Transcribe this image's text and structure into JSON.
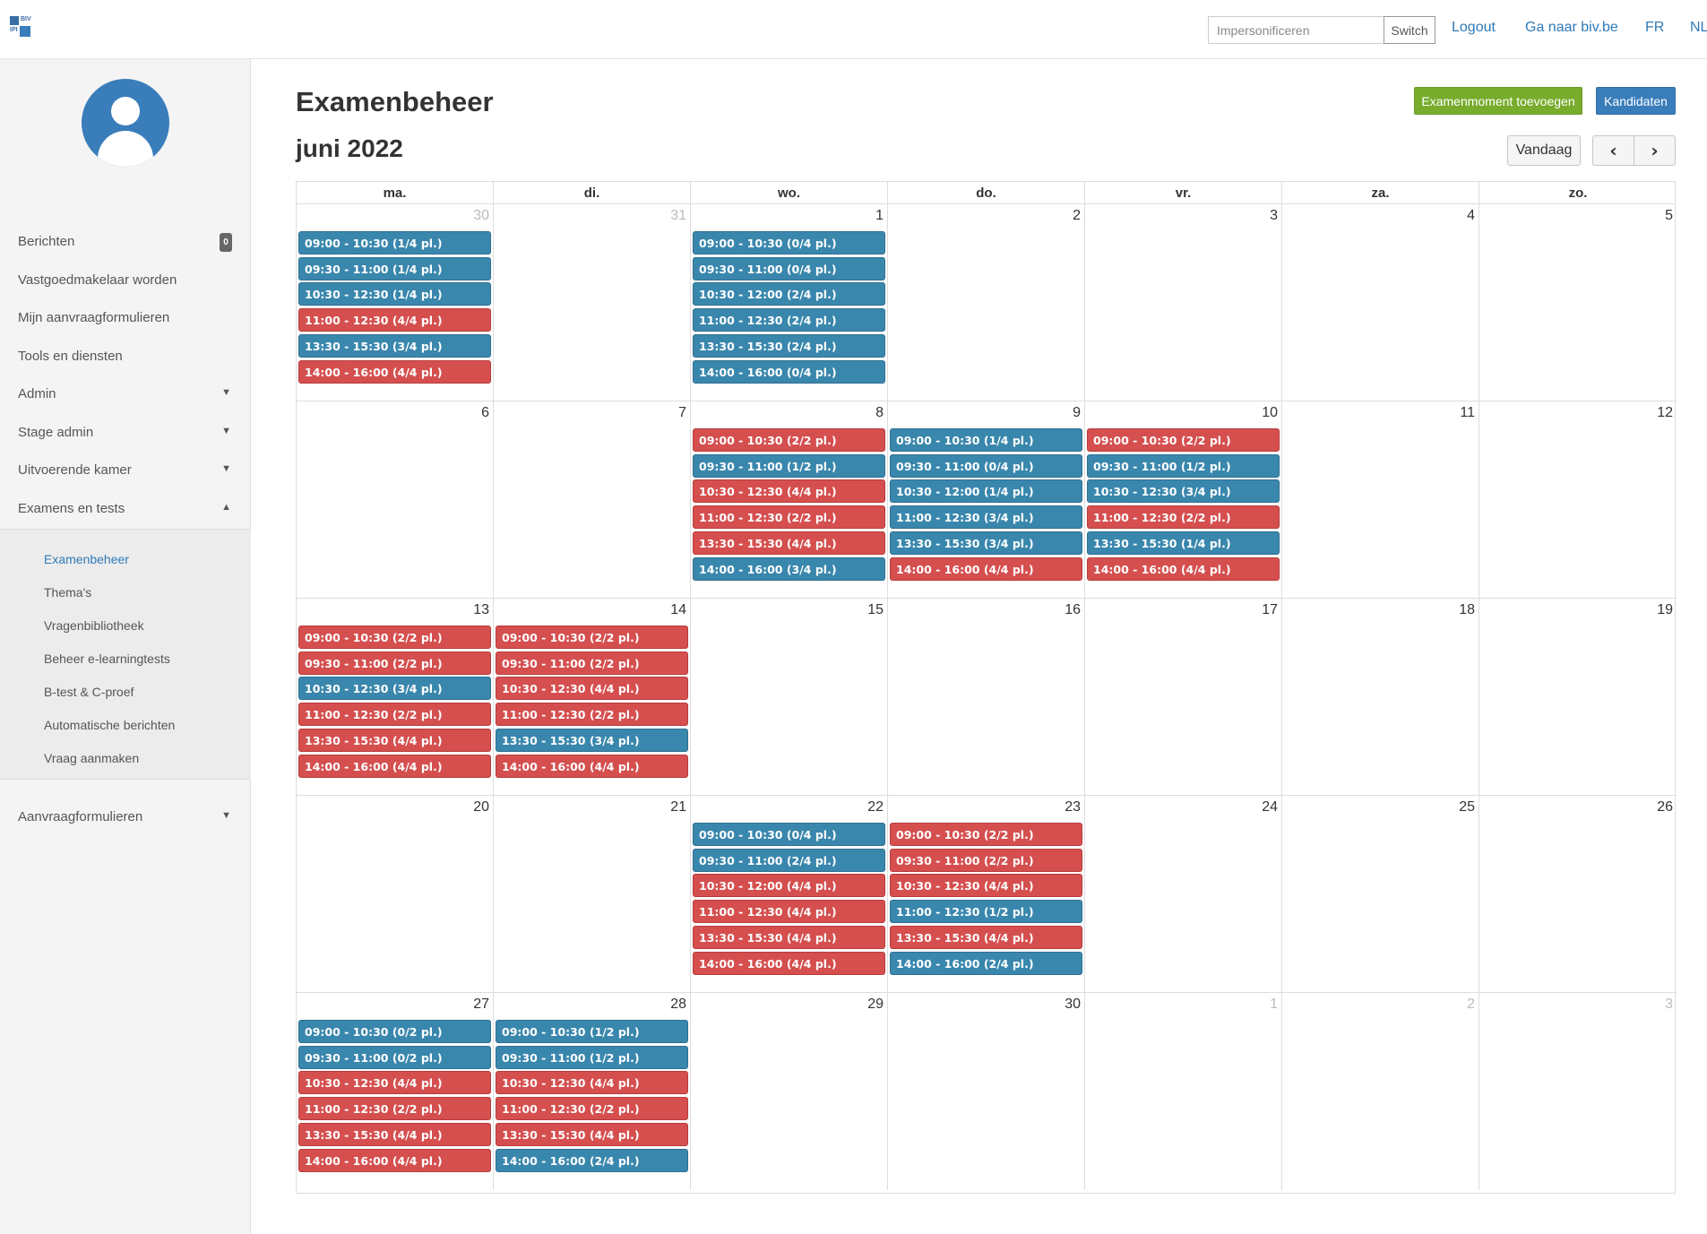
{
  "header": {
    "logo_top": "BIV",
    "logo_bottom": "IPI",
    "impersonate_placeholder": "Impersonificeren",
    "switch_label": "Switch",
    "links": [
      {
        "label": "Logout"
      },
      {
        "label": "Ga naar biv.be"
      },
      {
        "label": "FR"
      },
      {
        "label": "NL"
      }
    ]
  },
  "sidebar": {
    "items": [
      {
        "label": "Berichten",
        "badge": "0"
      },
      {
        "label": "Vastgoedmakelaar worden"
      },
      {
        "label": "Mijn aanvraagformulieren"
      },
      {
        "label": "Tools en diensten"
      },
      {
        "label": "Admin",
        "caret": "▼"
      },
      {
        "label": "Stage admin",
        "caret": "▼"
      },
      {
        "label": "Uitvoerende kamer",
        "caret": "▼"
      },
      {
        "label": "Examens en tests",
        "caret": "▲"
      },
      {
        "label": "Aanvraagformulieren",
        "caret": "▼"
      }
    ],
    "subitems": [
      {
        "label": "Examenbeheer",
        "active": true
      },
      {
        "label": "Thema's"
      },
      {
        "label": "Vragenbibliotheek"
      },
      {
        "label": "Beheer e-learningtests"
      },
      {
        "label": "B-test & C-proef"
      },
      {
        "label": "Automatische berichten"
      },
      {
        "label": "Vraag aanmaken"
      }
    ]
  },
  "main": {
    "title": "Examenbeheer",
    "month": "juni 2022",
    "add_button": "Examenmoment toevoegen",
    "candidates_button": "Kandidaten",
    "today_button": "Vandaag",
    "prev_icon": "‹",
    "next_icon": "›"
  },
  "colors": {
    "available": "#3a87ad",
    "full": "#d54f4f",
    "green": "#77ac2c"
  },
  "calendar": {
    "weekdays": [
      "ma.",
      "di.",
      "wo.",
      "do.",
      "vr.",
      "za.",
      "zo."
    ],
    "weeks": [
      [
        {
          "day": "30",
          "other": true,
          "events": [
            {
              "text": "09:00 - 10:30 (1/4 pl.)",
              "status": "blue"
            },
            {
              "text": "09:30 - 11:00 (1/4 pl.)",
              "status": "blue"
            },
            {
              "text": "10:30 - 12:30 (1/4 pl.)",
              "status": "blue"
            },
            {
              "text": "11:00 - 12:30 (4/4 pl.)",
              "status": "red"
            },
            {
              "text": "13:30 - 15:30 (3/4 pl.)",
              "status": "blue"
            },
            {
              "text": "14:00 - 16:00 (4/4 pl.)",
              "status": "red"
            }
          ]
        },
        {
          "day": "31",
          "other": true,
          "events": []
        },
        {
          "day": "1",
          "events": [
            {
              "text": "09:00 - 10:30 (0/4 pl.)",
              "status": "blue"
            },
            {
              "text": "09:30 - 11:00 (0/4 pl.)",
              "status": "blue"
            },
            {
              "text": "10:30 - 12:00 (2/4 pl.)",
              "status": "blue"
            },
            {
              "text": "11:00 - 12:30 (2/4 pl.)",
              "status": "blue"
            },
            {
              "text": "13:30 - 15:30 (2/4 pl.)",
              "status": "blue"
            },
            {
              "text": "14:00 - 16:00 (0/4 pl.)",
              "status": "blue"
            }
          ]
        },
        {
          "day": "2",
          "events": []
        },
        {
          "day": "3",
          "events": []
        },
        {
          "day": "4",
          "events": []
        },
        {
          "day": "5",
          "events": []
        }
      ],
      [
        {
          "day": "6",
          "events": []
        },
        {
          "day": "7",
          "events": []
        },
        {
          "day": "8",
          "events": [
            {
              "text": "09:00 - 10:30 (2/2 pl.)",
              "status": "red"
            },
            {
              "text": "09:30 - 11:00 (1/2 pl.)",
              "status": "blue"
            },
            {
              "text": "10:30 - 12:30 (4/4 pl.)",
              "status": "red"
            },
            {
              "text": "11:00 - 12:30 (2/2 pl.)",
              "status": "red"
            },
            {
              "text": "13:30 - 15:30 (4/4 pl.)",
              "status": "red"
            },
            {
              "text": "14:00 - 16:00 (3/4 pl.)",
              "status": "blue"
            }
          ]
        },
        {
          "day": "9",
          "events": [
            {
              "text": "09:00 - 10:30 (1/4 pl.)",
              "status": "blue"
            },
            {
              "text": "09:30 - 11:00 (0/4 pl.)",
              "status": "blue"
            },
            {
              "text": "10:30 - 12:00 (1/4 pl.)",
              "status": "blue"
            },
            {
              "text": "11:00 - 12:30 (3/4 pl.)",
              "status": "blue"
            },
            {
              "text": "13:30 - 15:30 (3/4 pl.)",
              "status": "blue"
            },
            {
              "text": "14:00 - 16:00 (4/4 pl.)",
              "status": "red"
            }
          ]
        },
        {
          "day": "10",
          "events": [
            {
              "text": "09:00 - 10:30 (2/2 pl.)",
              "status": "red"
            },
            {
              "text": "09:30 - 11:00 (1/2 pl.)",
              "status": "blue"
            },
            {
              "text": "10:30 - 12:30 (3/4 pl.)",
              "status": "blue"
            },
            {
              "text": "11:00 - 12:30 (2/2 pl.)",
              "status": "red"
            },
            {
              "text": "13:30 - 15:30 (1/4 pl.)",
              "status": "blue"
            },
            {
              "text": "14:00 - 16:00 (4/4 pl.)",
              "status": "red"
            }
          ]
        },
        {
          "day": "11",
          "events": []
        },
        {
          "day": "12",
          "events": []
        }
      ],
      [
        {
          "day": "13",
          "events": [
            {
              "text": "09:00 - 10:30 (2/2 pl.)",
              "status": "red"
            },
            {
              "text": "09:30 - 11:00 (2/2 pl.)",
              "status": "red"
            },
            {
              "text": "10:30 - 12:30 (3/4 pl.)",
              "status": "blue"
            },
            {
              "text": "11:00 - 12:30 (2/2 pl.)",
              "status": "red"
            },
            {
              "text": "13:30 - 15:30 (4/4 pl.)",
              "status": "red"
            },
            {
              "text": "14:00 - 16:00 (4/4 pl.)",
              "status": "red"
            }
          ]
        },
        {
          "day": "14",
          "events": [
            {
              "text": "09:00 - 10:30 (2/2 pl.)",
              "status": "red"
            },
            {
              "text": "09:30 - 11:00 (2/2 pl.)",
              "status": "red"
            },
            {
              "text": "10:30 - 12:30 (4/4 pl.)",
              "status": "red"
            },
            {
              "text": "11:00 - 12:30 (2/2 pl.)",
              "status": "red"
            },
            {
              "text": "13:30 - 15:30 (3/4 pl.)",
              "status": "blue"
            },
            {
              "text": "14:00 - 16:00 (4/4 pl.)",
              "status": "red"
            }
          ]
        },
        {
          "day": "15",
          "events": []
        },
        {
          "day": "16",
          "events": []
        },
        {
          "day": "17",
          "events": []
        },
        {
          "day": "18",
          "events": []
        },
        {
          "day": "19",
          "events": []
        }
      ],
      [
        {
          "day": "20",
          "events": []
        },
        {
          "day": "21",
          "events": []
        },
        {
          "day": "22",
          "events": [
            {
              "text": "09:00 - 10:30 (0/4 pl.)",
              "status": "blue"
            },
            {
              "text": "09:30 - 11:00 (2/4 pl.)",
              "status": "blue"
            },
            {
              "text": "10:30 - 12:00 (4/4 pl.)",
              "status": "red"
            },
            {
              "text": "11:00 - 12:30 (4/4 pl.)",
              "status": "red"
            },
            {
              "text": "13:30 - 15:30 (4/4 pl.)",
              "status": "red"
            },
            {
              "text": "14:00 - 16:00 (4/4 pl.)",
              "status": "red"
            }
          ]
        },
        {
          "day": "23",
          "events": [
            {
              "text": "09:00 - 10:30 (2/2 pl.)",
              "status": "red"
            },
            {
              "text": "09:30 - 11:00 (2/2 pl.)",
              "status": "red"
            },
            {
              "text": "10:30 - 12:30 (4/4 pl.)",
              "status": "red"
            },
            {
              "text": "11:00 - 12:30 (1/2 pl.)",
              "status": "blue"
            },
            {
              "text": "13:30 - 15:30 (4/4 pl.)",
              "status": "red"
            },
            {
              "text": "14:00 - 16:00 (2/4 pl.)",
              "status": "blue"
            }
          ]
        },
        {
          "day": "24",
          "events": []
        },
        {
          "day": "25",
          "events": []
        },
        {
          "day": "26",
          "events": []
        }
      ],
      [
        {
          "day": "27",
          "events": [
            {
              "text": "09:00 - 10:30 (0/2 pl.)",
              "status": "blue"
            },
            {
              "text": "09:30 - 11:00 (0/2 pl.)",
              "status": "blue"
            },
            {
              "text": "10:30 - 12:30 (4/4 pl.)",
              "status": "red"
            },
            {
              "text": "11:00 - 12:30 (2/2 pl.)",
              "status": "red"
            },
            {
              "text": "13:30 - 15:30 (4/4 pl.)",
              "status": "red"
            },
            {
              "text": "14:00 - 16:00 (4/4 pl.)",
              "status": "red"
            }
          ]
        },
        {
          "day": "28",
          "events": [
            {
              "text": "09:00 - 10:30 (1/2 pl.)",
              "status": "blue"
            },
            {
              "text": "09:30 - 11:00 (1/2 pl.)",
              "status": "blue"
            },
            {
              "text": "10:30 - 12:30 (4/4 pl.)",
              "status": "red"
            },
            {
              "text": "11:00 - 12:30 (2/2 pl.)",
              "status": "red"
            },
            {
              "text": "13:30 - 15:30 (4/4 pl.)",
              "status": "red"
            },
            {
              "text": "14:00 - 16:00 (2/4 pl.)",
              "status": "blue"
            }
          ]
        },
        {
          "day": "29",
          "events": []
        },
        {
          "day": "30",
          "events": []
        },
        {
          "day": "1",
          "other": true,
          "events": []
        },
        {
          "day": "2",
          "other": true,
          "events": []
        },
        {
          "day": "3",
          "other": true,
          "events": []
        }
      ]
    ]
  }
}
